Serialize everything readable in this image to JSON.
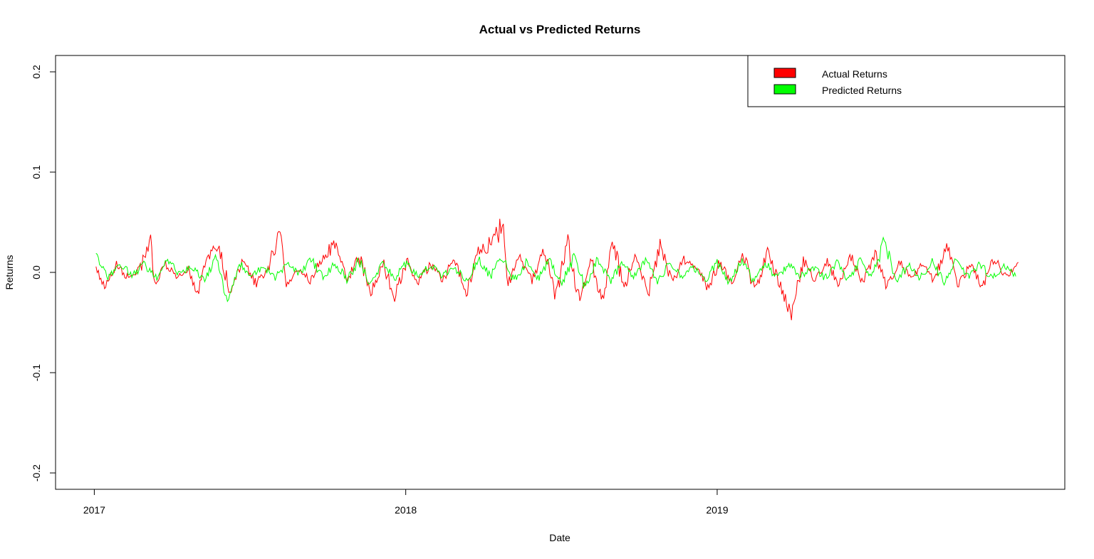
{
  "chart_data": {
    "type": "line",
    "title": "Actual vs Predicted Returns",
    "xlabel": "Date",
    "ylabel": "Returns",
    "xlim": [
      "2016-12-30",
      "2019-12-31"
    ],
    "ylim": [
      -0.2,
      0.2
    ],
    "x_ticks": [
      {
        "date": "2017-01-01",
        "label": "2017"
      },
      {
        "date": "2018-01-01",
        "label": "2018"
      },
      {
        "date": "2019-01-01",
        "label": "2019"
      }
    ],
    "y_ticks": [
      {
        "value": -0.2,
        "label": "-0.2"
      },
      {
        "value": -0.1,
        "label": "-0.1"
      },
      {
        "value": 0.0,
        "label": "0.0"
      },
      {
        "value": 0.1,
        "label": "0.1"
      },
      {
        "value": 0.2,
        "label": "0.2"
      }
    ],
    "grid": false,
    "legend": "top-right",
    "series": [
      {
        "name": "Actual Returns",
        "color": "#ff0000",
        "points": [
          [
            "2017-01-03",
            0.005
          ],
          [
            "2017-01-13",
            -0.014
          ],
          [
            "2017-01-27",
            0.008
          ],
          [
            "2017-02-10",
            -0.006
          ],
          [
            "2017-02-24",
            0.004
          ],
          [
            "2017-03-08",
            0.034
          ],
          [
            "2017-03-13",
            -0.012
          ],
          [
            "2017-03-24",
            0.01
          ],
          [
            "2017-04-07",
            -0.004
          ],
          [
            "2017-04-21",
            0.002
          ],
          [
            "2017-05-02",
            -0.02
          ],
          [
            "2017-05-12",
            0.015
          ],
          [
            "2017-05-26",
            0.026
          ],
          [
            "2017-06-09",
            -0.018
          ],
          [
            "2017-06-23",
            0.012
          ],
          [
            "2017-07-10",
            -0.012
          ],
          [
            "2017-07-25",
            0.008
          ],
          [
            "2017-08-08",
            0.041
          ],
          [
            "2017-08-14",
            -0.015
          ],
          [
            "2017-08-28",
            0.005
          ],
          [
            "2017-09-11",
            -0.008
          ],
          [
            "2017-09-25",
            0.014
          ],
          [
            "2017-10-10",
            0.027
          ],
          [
            "2017-10-24",
            -0.01
          ],
          [
            "2017-11-07",
            0.018
          ],
          [
            "2017-11-21",
            -0.022
          ],
          [
            "2017-12-05",
            0.01
          ],
          [
            "2017-12-19",
            -0.024
          ],
          [
            "2018-01-02",
            0.012
          ],
          [
            "2018-01-16",
            -0.01
          ],
          [
            "2018-01-30",
            0.009
          ],
          [
            "2018-02-13",
            -0.008
          ],
          [
            "2018-02-27",
            0.015
          ],
          [
            "2018-03-13",
            -0.02
          ],
          [
            "2018-03-27",
            0.02
          ],
          [
            "2018-04-10",
            0.028
          ],
          [
            "2018-04-17",
            0.034
          ],
          [
            "2018-04-24",
            0.053
          ],
          [
            "2018-05-01",
            -0.012
          ],
          [
            "2018-05-15",
            0.015
          ],
          [
            "2018-05-29",
            -0.01
          ],
          [
            "2018-06-12",
            0.022
          ],
          [
            "2018-06-26",
            -0.025
          ],
          [
            "2018-07-10",
            0.03
          ],
          [
            "2018-07-24",
            -0.03
          ],
          [
            "2018-08-07",
            0.012
          ],
          [
            "2018-08-21",
            -0.035
          ],
          [
            "2018-08-31",
            0.035
          ],
          [
            "2018-09-14",
            -0.018
          ],
          [
            "2018-09-28",
            0.02
          ],
          [
            "2018-10-12",
            -0.022
          ],
          [
            "2018-10-26",
            0.028
          ],
          [
            "2018-11-09",
            -0.01
          ],
          [
            "2018-11-23",
            0.012
          ],
          [
            "2018-12-07",
            0.008
          ],
          [
            "2018-12-21",
            -0.015
          ],
          [
            "2019-01-04",
            0.01
          ],
          [
            "2019-01-18",
            -0.012
          ],
          [
            "2019-02-01",
            0.018
          ],
          [
            "2019-02-15",
            -0.02
          ],
          [
            "2019-03-01",
            0.022
          ],
          [
            "2019-03-15",
            -0.01
          ],
          [
            "2019-03-29",
            -0.042
          ],
          [
            "2019-04-12",
            0.012
          ],
          [
            "2019-04-26",
            -0.008
          ],
          [
            "2019-05-10",
            0.01
          ],
          [
            "2019-05-24",
            -0.012
          ],
          [
            "2019-06-07",
            0.015
          ],
          [
            "2019-06-21",
            -0.01
          ],
          [
            "2019-07-05",
            0.02
          ],
          [
            "2019-07-19",
            -0.015
          ],
          [
            "2019-08-02",
            0.012
          ],
          [
            "2019-08-16",
            -0.008
          ],
          [
            "2019-08-30",
            0.01
          ],
          [
            "2019-09-13",
            -0.01
          ],
          [
            "2019-09-27",
            0.03
          ],
          [
            "2019-10-11",
            -0.012
          ],
          [
            "2019-10-25",
            0.008
          ],
          [
            "2019-11-08",
            -0.015
          ],
          [
            "2019-11-22",
            0.015
          ],
          [
            "2019-12-06",
            -0.005
          ],
          [
            "2019-12-20",
            0.01
          ]
        ]
      },
      {
        "name": "Predicted Returns",
        "color": "#00ff00",
        "points": [
          [
            "2017-01-03",
            0.018
          ],
          [
            "2017-01-17",
            -0.005
          ],
          [
            "2017-01-31",
            0.01
          ],
          [
            "2017-02-14",
            -0.004
          ],
          [
            "2017-02-28",
            0.008
          ],
          [
            "2017-03-14",
            -0.006
          ],
          [
            "2017-03-28",
            0.012
          ],
          [
            "2017-04-11",
            -0.002
          ],
          [
            "2017-04-25",
            0.006
          ],
          [
            "2017-05-09",
            -0.008
          ],
          [
            "2017-05-23",
            0.014
          ],
          [
            "2017-06-06",
            -0.025
          ],
          [
            "2017-06-20",
            0.01
          ],
          [
            "2017-07-04",
            -0.004
          ],
          [
            "2017-07-18",
            0.006
          ],
          [
            "2017-08-01",
            -0.006
          ],
          [
            "2017-08-15",
            0.008
          ],
          [
            "2017-08-29",
            -0.002
          ],
          [
            "2017-09-12",
            0.014
          ],
          [
            "2017-09-26",
            -0.006
          ],
          [
            "2017-10-10",
            0.01
          ],
          [
            "2017-10-24",
            -0.008
          ],
          [
            "2017-11-07",
            0.012
          ],
          [
            "2017-11-21",
            -0.012
          ],
          [
            "2017-12-05",
            0.008
          ],
          [
            "2017-12-19",
            -0.006
          ],
          [
            "2018-01-02",
            0.01
          ],
          [
            "2018-01-16",
            -0.005
          ],
          [
            "2018-01-30",
            0.008
          ],
          [
            "2018-02-13",
            -0.004
          ],
          [
            "2018-02-27",
            0.006
          ],
          [
            "2018-03-13",
            -0.01
          ],
          [
            "2018-03-27",
            0.014
          ],
          [
            "2018-04-10",
            -0.004
          ],
          [
            "2018-04-24",
            0.016
          ],
          [
            "2018-05-08",
            -0.008
          ],
          [
            "2018-05-22",
            0.01
          ],
          [
            "2018-06-05",
            -0.006
          ],
          [
            "2018-06-19",
            0.012
          ],
          [
            "2018-07-03",
            -0.012
          ],
          [
            "2018-07-17",
            0.016
          ],
          [
            "2018-07-31",
            -0.018
          ],
          [
            "2018-08-14",
            0.014
          ],
          [
            "2018-08-28",
            -0.01
          ],
          [
            "2018-09-11",
            0.01
          ],
          [
            "2018-09-25",
            -0.006
          ],
          [
            "2018-10-09",
            0.012
          ],
          [
            "2018-10-23",
            -0.008
          ],
          [
            "2018-11-06",
            0.008
          ],
          [
            "2018-11-20",
            -0.004
          ],
          [
            "2018-12-04",
            0.006
          ],
          [
            "2018-12-18",
            -0.008
          ],
          [
            "2019-01-01",
            0.01
          ],
          [
            "2019-01-15",
            -0.01
          ],
          [
            "2019-01-29",
            0.012
          ],
          [
            "2019-02-12",
            -0.008
          ],
          [
            "2019-02-26",
            0.01
          ],
          [
            "2019-03-12",
            -0.006
          ],
          [
            "2019-03-26",
            0.008
          ],
          [
            "2019-04-09",
            -0.004
          ],
          [
            "2019-04-23",
            0.006
          ],
          [
            "2019-05-07",
            -0.006
          ],
          [
            "2019-05-21",
            0.01
          ],
          [
            "2019-06-04",
            -0.008
          ],
          [
            "2019-06-18",
            0.012
          ],
          [
            "2019-07-02",
            -0.006
          ],
          [
            "2019-07-16",
            0.033
          ],
          [
            "2019-07-30",
            -0.01
          ],
          [
            "2019-08-13",
            0.008
          ],
          [
            "2019-08-27",
            -0.006
          ],
          [
            "2019-09-10",
            0.01
          ],
          [
            "2019-09-24",
            -0.008
          ],
          [
            "2019-10-08",
            0.012
          ],
          [
            "2019-10-22",
            -0.004
          ],
          [
            "2019-11-05",
            0.008
          ],
          [
            "2019-11-19",
            -0.006
          ],
          [
            "2019-12-03",
            0.006
          ],
          [
            "2019-12-17",
            -0.004
          ]
        ]
      }
    ]
  }
}
